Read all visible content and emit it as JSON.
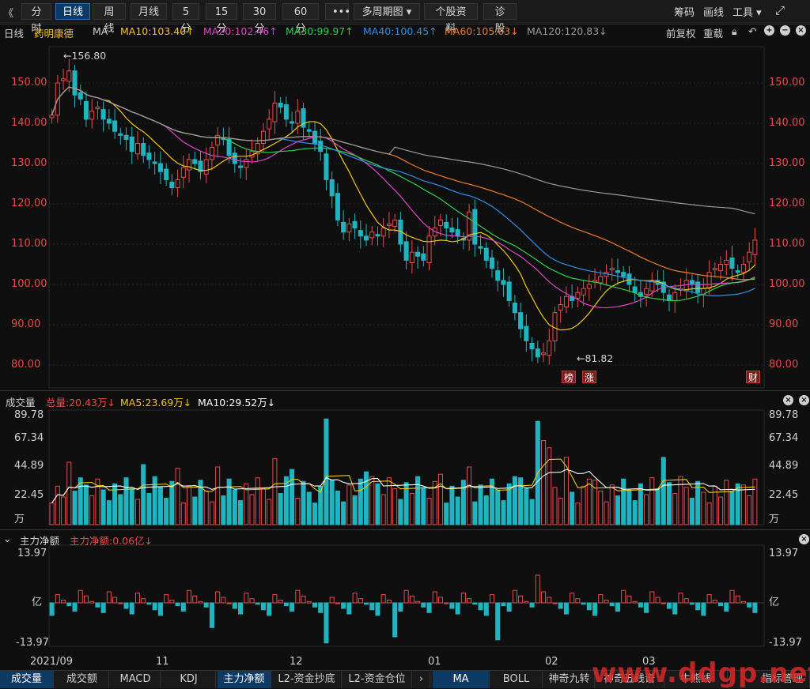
{
  "toolbar": {
    "collapse_icon": "double-chevron-left",
    "buttons": [
      "分时",
      "日线",
      "周线",
      "月线",
      "5分",
      "15分",
      "30分",
      "60分",
      "•••",
      "多周期图 ▾",
      "个股资料",
      "诊股"
    ],
    "active": "日线",
    "right": [
      "筹码",
      "画线",
      "工具 ▾"
    ],
    "fullscreen_icon": "expand-arrows"
  },
  "ma_bar": {
    "period": "日线",
    "stock": "药明康德",
    "ma_label": "MA",
    "items": [
      {
        "text": "MA10:103.40↑",
        "color": "#f2c811"
      },
      {
        "text": "MA20:102.46↑",
        "color": "#e046c8"
      },
      {
        "text": "MA30:99.97↑",
        "color": "#2fd24a"
      },
      {
        "text": "MA40:100.45↑",
        "color": "#2f8fe8"
      },
      {
        "text": "MA60:105.03↓",
        "color": "#f07a2a"
      },
      {
        "text": "MA120:120.83↓",
        "color": "#9a9a9a"
      }
    ],
    "right": [
      "前复权",
      "重载"
    ]
  },
  "price_pane": {
    "y_labels": [
      "150.00",
      "140.00",
      "130.00",
      "120.00",
      "110.00",
      "100.00",
      "90.00",
      "80.00"
    ],
    "high_marker": "←156.80",
    "low_marker": "←81.82",
    "tags": [
      "榜",
      "涨",
      "财"
    ]
  },
  "volume_pane": {
    "title": "成交量",
    "total": "总量:20.43万↓",
    "ma5": "MA5:23.69万↓",
    "ma10": "MA10:29.52万↓",
    "y_labels": [
      "89.78",
      "67.34",
      "44.89",
      "22.45",
      "万"
    ]
  },
  "flow_pane": {
    "title": "主力净额",
    "value": "主力净额:0.06亿↓",
    "y_labels": [
      "13.97",
      "亿",
      "-13.97"
    ]
  },
  "x_axis": [
    "2021/09",
    "11",
    "12",
    "01",
    "02",
    "03"
  ],
  "bottom_tabs": [
    "成交量",
    "成交额",
    "MACD",
    "KDJ",
    "主力净额",
    "L2-资金抄底",
    "L2-资金仓位",
    "MA",
    "BOLL",
    "神奇九转",
    "神奇五线谱",
    "牛熊线",
    "指标管理"
  ],
  "active_tabs": [
    "成交量",
    "主力净额",
    "MA"
  ],
  "watermark": "www.ddgp.net",
  "colors": {
    "up": "#e84a4a",
    "down": "#1fb5c0",
    "bg": "#0f0f0f",
    "accent": "#0e3a66"
  }
}
